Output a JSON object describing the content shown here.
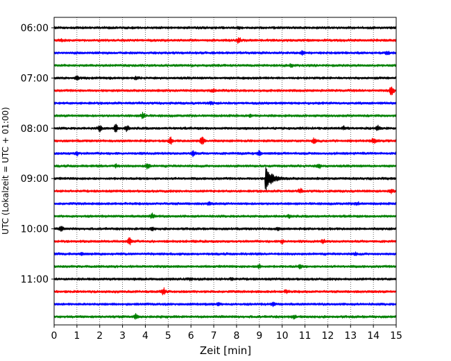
{
  "chart_data": {
    "type": "line",
    "title": "",
    "xlabel": "Zeit  [min]",
    "ylabel": "UTC (Lokalzeit = UTC + 01:00)",
    "xlim": [
      0,
      15
    ],
    "x_ticks": [
      "0",
      "1",
      "2",
      "3",
      "4",
      "5",
      "6",
      "7",
      "8",
      "9",
      "10",
      "11",
      "12",
      "13",
      "14",
      "15"
    ],
    "y_ticks": [
      "06:00",
      "07:00",
      "08:00",
      "09:00",
      "10:00",
      "11:00"
    ],
    "grid": "vertical dotted",
    "trace_interval_minutes": 15,
    "trace_colors": [
      "#000000",
      "#ff0000",
      "#0000ff",
      "#008000"
    ],
    "traces": [
      {
        "start": "06:00",
        "events": [
          [
            8.1,
            0.3
          ]
        ]
      },
      {
        "start": "06:15",
        "events": [
          [
            8.1,
            0.9
          ],
          [
            0.3,
            0.3
          ]
        ]
      },
      {
        "start": "06:30",
        "events": [
          [
            10.9,
            0.7
          ],
          [
            14.6,
            0.5
          ]
        ]
      },
      {
        "start": "06:45",
        "events": [
          [
            10.4,
            0.5
          ]
        ]
      },
      {
        "start": "07:00",
        "events": [
          [
            1.0,
            0.6
          ],
          [
            3.6,
            0.4
          ]
        ]
      },
      {
        "start": "07:15",
        "events": [
          [
            14.8,
            1.8
          ],
          [
            7.0,
            0.4
          ]
        ]
      },
      {
        "start": "07:30",
        "events": [
          [
            6.9,
            0.4
          ]
        ]
      },
      {
        "start": "07:45",
        "events": [
          [
            3.9,
            1.0
          ],
          [
            8.6,
            0.4
          ]
        ]
      },
      {
        "start": "08:00",
        "events": [
          [
            2.0,
            1.1
          ],
          [
            2.7,
            1.3
          ],
          [
            3.2,
            1.0
          ],
          [
            12.7,
            0.5
          ],
          [
            14.2,
            0.7
          ]
        ]
      },
      {
        "start": "08:15",
        "events": [
          [
            6.5,
            1.6
          ],
          [
            5.1,
            1.0
          ],
          [
            11.4,
            0.8
          ],
          [
            14.0,
            0.9
          ]
        ]
      },
      {
        "start": "08:30",
        "events": [
          [
            6.1,
            0.9
          ],
          [
            9.0,
            0.8
          ],
          [
            1.0,
            0.6
          ]
        ]
      },
      {
        "start": "08:45",
        "events": [
          [
            4.1,
            0.9
          ],
          [
            11.6,
            0.7
          ],
          [
            2.7,
            0.5
          ]
        ]
      },
      {
        "start": "09:00",
        "events": [
          [
            9.3,
            4.2
          ]
        ]
      },
      {
        "start": "09:15",
        "events": [
          [
            10.8,
            0.6
          ],
          [
            14.8,
            0.6
          ]
        ]
      },
      {
        "start": "09:30",
        "events": [
          [
            13.3,
            0.5
          ],
          [
            6.8,
            0.4
          ]
        ]
      },
      {
        "start": "09:45",
        "events": [
          [
            4.3,
            0.9
          ],
          [
            10.3,
            0.5
          ]
        ]
      },
      {
        "start": "10:00",
        "events": [
          [
            0.3,
            0.7
          ],
          [
            4.3,
            0.5
          ],
          [
            9.8,
            0.4
          ]
        ]
      },
      {
        "start": "10:15",
        "events": [
          [
            3.3,
            1.2
          ],
          [
            10.0,
            0.6
          ],
          [
            11.8,
            0.5
          ]
        ]
      },
      {
        "start": "10:30",
        "events": [
          [
            1.2,
            0.4
          ],
          [
            13.2,
            0.4
          ]
        ]
      },
      {
        "start": "10:45",
        "events": [
          [
            9.0,
            0.6
          ],
          [
            10.8,
            0.5
          ]
        ]
      },
      {
        "start": "11:00",
        "events": [
          [
            7.8,
            0.4
          ],
          [
            6.0,
            0.3
          ]
        ]
      },
      {
        "start": "11:15",
        "events": [
          [
            4.8,
            1.1
          ],
          [
            10.2,
            0.5
          ]
        ]
      },
      {
        "start": "11:30",
        "events": [
          [
            9.6,
            0.5
          ],
          [
            7.2,
            0.4
          ]
        ]
      },
      {
        "start": "11:45",
        "events": [
          [
            3.6,
            0.9
          ],
          [
            10.5,
            0.5
          ]
        ]
      }
    ]
  }
}
